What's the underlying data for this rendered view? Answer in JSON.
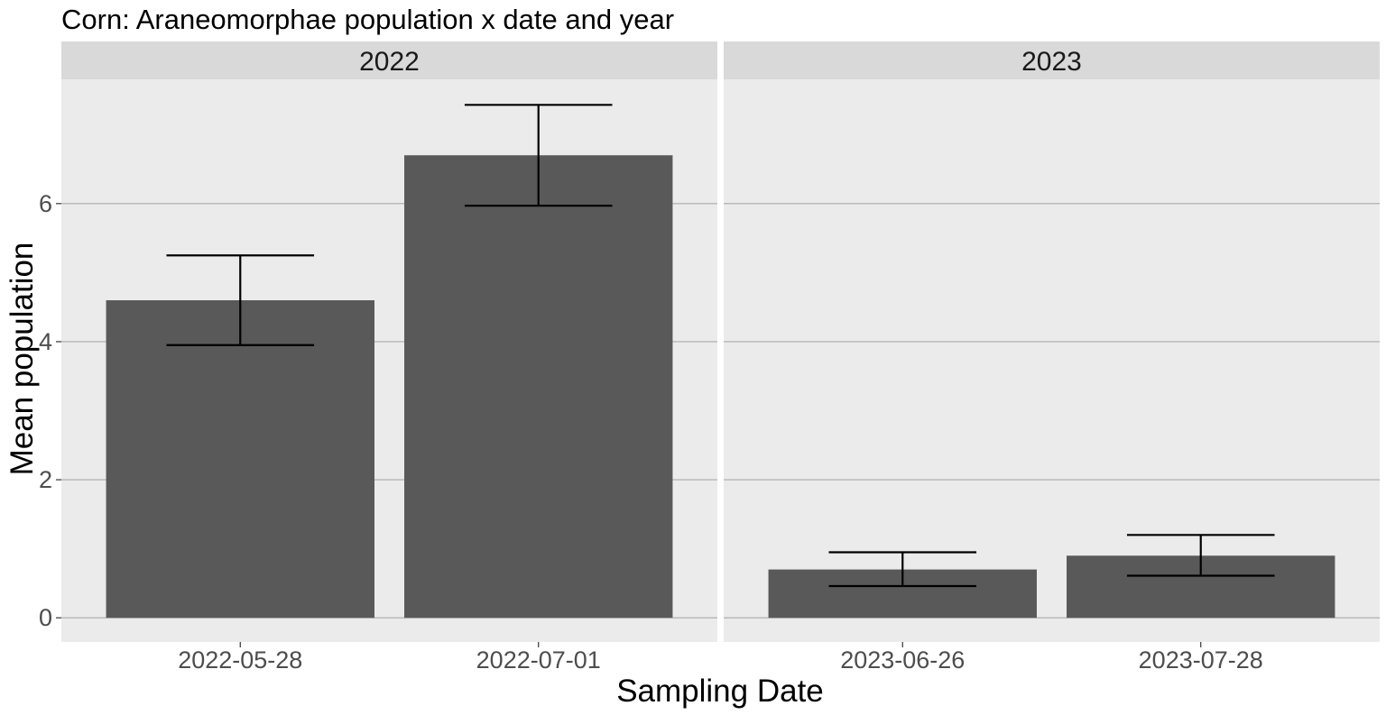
{
  "chart_data": {
    "type": "bar",
    "title": "Corn: Araneomorphae population x date and year",
    "xlabel": "Sampling Date",
    "ylabel": "Mean population",
    "ylim": [
      -0.35,
      7.8
    ],
    "yticks": [
      0,
      2,
      4,
      6
    ],
    "grid": true,
    "panels": [
      {
        "facet": "2022",
        "categories": [
          "2022-05-28",
          "2022-07-01"
        ],
        "values": [
          4.6,
          6.7
        ],
        "error_low": [
          3.95,
          5.97
        ],
        "error_high": [
          5.25,
          7.43
        ]
      },
      {
        "facet": "2023",
        "categories": [
          "2023-06-26",
          "2023-07-28"
        ],
        "values": [
          0.7,
          0.9
        ],
        "error_low": [
          0.46,
          0.61
        ],
        "error_high": [
          0.95,
          1.2
        ]
      }
    ],
    "colors": {
      "bar": "#595959",
      "panel_bg": "#ebebeb",
      "strip_bg": "#d9d9d9",
      "grid": "#a9a9a9",
      "errorbar": "#000000"
    }
  }
}
